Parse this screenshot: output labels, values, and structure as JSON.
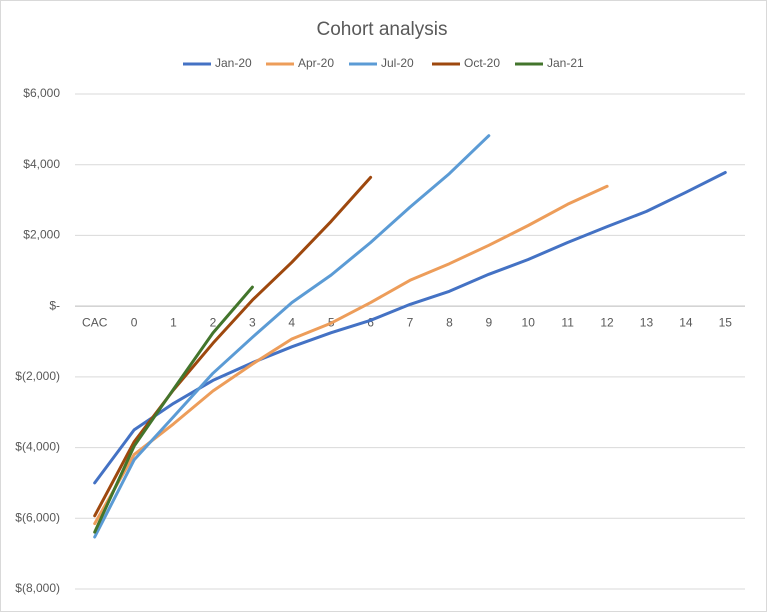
{
  "chart_data": {
    "type": "line",
    "title": "Cohort analysis",
    "categories": [
      "CAC",
      "0",
      "1",
      "2",
      "3",
      "4",
      "5",
      "6",
      "7",
      "8",
      "9",
      "10",
      "11",
      "12",
      "13",
      "14",
      "15"
    ],
    "series": [
      {
        "name": "Jan-20",
        "color": "#4472c4",
        "values": [
          -5000,
          -3500,
          -2750,
          -2100,
          -1600,
          -1150,
          -750,
          -400,
          50,
          420,
          900,
          1320,
          1800,
          2250,
          2680,
          3220,
          3780
        ]
      },
      {
        "name": "Apr-20",
        "color": "#ed9d5a",
        "values": [
          -6150,
          -4200,
          -3330,
          -2400,
          -1640,
          -930,
          -480,
          100,
          730,
          1200,
          1720,
          2280,
          2880,
          3390,
          null,
          null,
          null
        ]
      },
      {
        "name": "Jul-20",
        "color": "#5b9bd5",
        "values": [
          -6530,
          -4350,
          -3130,
          -1900,
          -880,
          100,
          880,
          1800,
          2800,
          3750,
          4820,
          null,
          null,
          null,
          null,
          null,
          null
        ]
      },
      {
        "name": "Oct-20",
        "color": "#9e480e",
        "values": [
          -5930,
          -3840,
          -2370,
          -1050,
          170,
          1240,
          2400,
          3640,
          null,
          null,
          null,
          null,
          null,
          null,
          null,
          null,
          null
        ]
      },
      {
        "name": "Jan-21",
        "color": "#43752c",
        "values": [
          -6390,
          -3960,
          -2350,
          -760,
          540,
          null,
          null,
          null,
          null,
          null,
          null,
          null,
          null,
          null,
          null,
          null,
          null
        ]
      }
    ],
    "ylim": [
      -8000,
      6000
    ],
    "yticks": [
      {
        "value": -8000,
        "label": "$(8,000)"
      },
      {
        "value": -6000,
        "label": "$(6,000)"
      },
      {
        "value": -4000,
        "label": "$(4,000)"
      },
      {
        "value": -2000,
        "label": "$(2,000)"
      },
      {
        "value": 0,
        "label": "$-"
      },
      {
        "value": 2000,
        "label": "$2,000"
      },
      {
        "value": 4000,
        "label": "$4,000"
      },
      {
        "value": 6000,
        "label": "$6,000"
      }
    ],
    "grid": true,
    "legend": "top"
  }
}
